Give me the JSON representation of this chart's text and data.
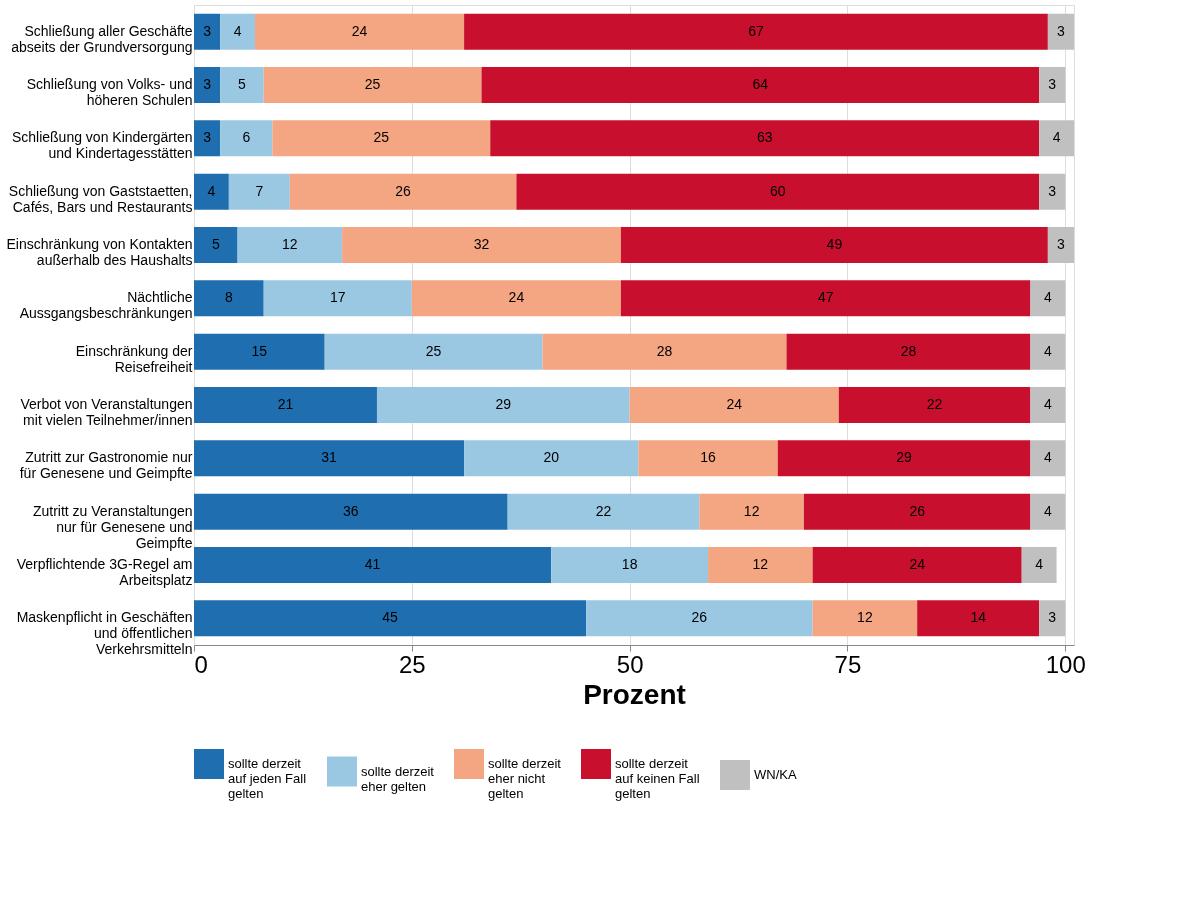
{
  "chart_data": {
    "type": "bar",
    "orientation": "horizontal",
    "stacked": true,
    "xlabel": "Prozent",
    "categories": [
      "Schließung aller Geschäfte abseits der Grundversorgung",
      "Schließung von Volks- und höheren Schulen",
      "Schließung von Kindergärten und Kindertagesstätten",
      "Schließung von Gaststaetten, Cafés, Bars und Restaurants",
      "Einschränkung von Kontakten außerhalb des Haushalts",
      "Nächtliche Aussgangsbeschränkungen",
      "Einschränkung der Reisefreiheit",
      "Verbot von Veranstaltungen mit vielen Teilnehmer/innen",
      "Zutritt zur Gastronomie nur für Genesene und Geimpfte",
      "Zutritt zu Veranstaltungen nur für Genesene und Geimpfte",
      "Verpflichtende 3G-Regel am Arbeitsplatz",
      "Maskenpflicht in Geschäften und öffentlichen Verkehrsmitteln"
    ],
    "series": [
      {
        "name": "sollte derzeit auf jeden Fall gelten",
        "color": "#1f6eb0",
        "values": [
          3,
          3,
          3,
          4,
          5,
          8,
          15,
          21,
          31,
          36,
          41,
          45
        ]
      },
      {
        "name": "sollte derzeit eher gelten",
        "color": "#9ac8e3",
        "values": [
          4,
          5,
          6,
          7,
          12,
          17,
          25,
          29,
          20,
          22,
          18,
          26
        ]
      },
      {
        "name": "sollte derzeit eher nicht gelten",
        "color": "#f4a582",
        "values": [
          24,
          25,
          25,
          26,
          32,
          24,
          28,
          24,
          16,
          12,
          12,
          12
        ]
      },
      {
        "name": "sollte derzeit auf keinen Fall gelten",
        "color": "#c8102e",
        "values": [
          67,
          64,
          63,
          60,
          49,
          47,
          28,
          22,
          29,
          26,
          24,
          14
        ]
      },
      {
        "name": "WN/KA",
        "color": "#c0c0c0",
        "values": [
          3,
          3,
          4,
          3,
          3,
          4,
          4,
          4,
          4,
          4,
          4,
          3
        ]
      }
    ],
    "xlim": [
      0,
      101
    ],
    "xticks": [
      0,
      25,
      50,
      75,
      100
    ],
    "data_labels": true,
    "grid": "x",
    "legend": "bottom"
  }
}
